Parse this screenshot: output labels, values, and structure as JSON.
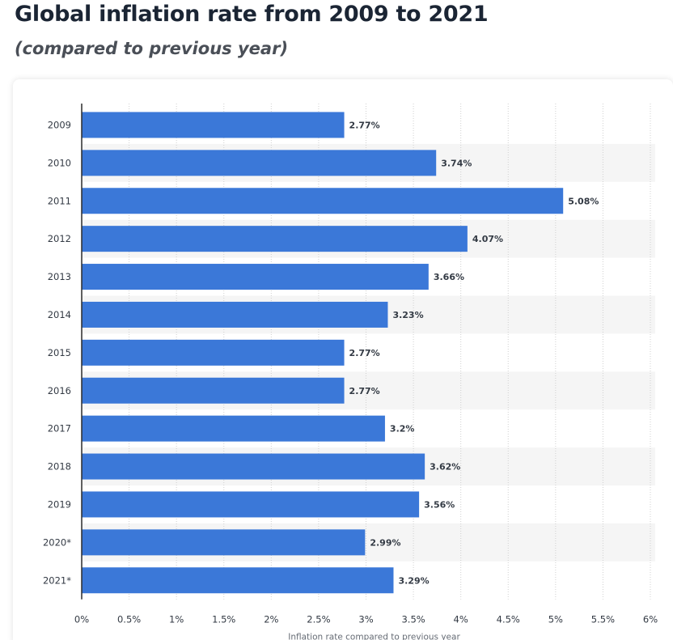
{
  "title": "Global inflation rate from 2009 to 2021",
  "subtitle": "(compared to previous year)",
  "colors": {
    "bar": "#3b78d8",
    "band": "#f5f5f5",
    "grid": "#d0d0d0",
    "axis": "#2b2b2b"
  },
  "chart_data": {
    "type": "bar",
    "orientation": "horizontal",
    "categories": [
      "2009",
      "2010",
      "2011",
      "2012",
      "2013",
      "2014",
      "2015",
      "2016",
      "2017",
      "2018",
      "2019",
      "2020*",
      "2021*"
    ],
    "values": [
      2.77,
      3.74,
      5.08,
      4.07,
      3.66,
      3.23,
      2.77,
      2.77,
      3.2,
      3.62,
      3.56,
      2.99,
      3.29
    ],
    "data_labels": [
      "2.77%",
      "3.74%",
      "5.08%",
      "4.07%",
      "3.66%",
      "3.23%",
      "2.77%",
      "2.77%",
      "3.2%",
      "3.62%",
      "3.56%",
      "2.99%",
      "3.29%"
    ],
    "xlabel": "Inflation rate compared to previous year",
    "xlim": [
      0,
      6
    ],
    "xticks": [
      0,
      0.5,
      1,
      1.5,
      2,
      2.5,
      3,
      3.5,
      4,
      4.5,
      5,
      5.5,
      6
    ],
    "xtick_labels": [
      "0%",
      "0.5%",
      "1%",
      "1.5%",
      "2%",
      "2.5%",
      "3%",
      "3.5%",
      "4%",
      "4.5%",
      "5%",
      "5.5%",
      "6%"
    ],
    "grid": "vertical dotted",
    "legend": "none"
  }
}
